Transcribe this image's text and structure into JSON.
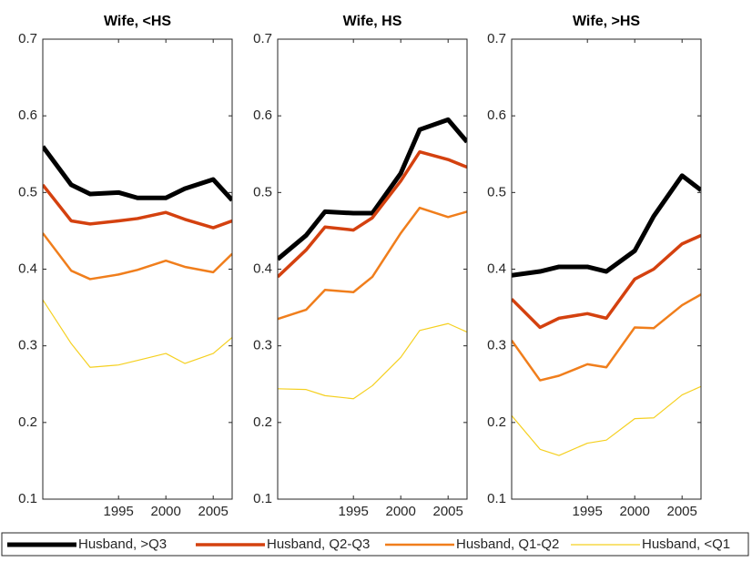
{
  "chart_data": [
    {
      "type": "line",
      "title": "Wife, <HS",
      "x": [
        1987,
        1990,
        1992,
        1995,
        1997,
        2000,
        2002,
        2005,
        2007
      ],
      "xlim": [
        1987,
        2007
      ],
      "xticks": [
        1995,
        2000,
        2005
      ],
      "ylim": [
        0.1,
        0.7
      ],
      "yticks": [
        0.1,
        0.2,
        0.3,
        0.4,
        0.5,
        0.6,
        0.7
      ],
      "series": [
        {
          "name": "Husband, >Q3",
          "color": "#000000",
          "values": [
            0.56,
            0.51,
            0.498,
            0.5,
            0.493,
            0.493,
            0.505,
            0.517,
            0.49
          ]
        },
        {
          "name": "Husband, Q2-Q3",
          "color": "#d4410f",
          "values": [
            0.51,
            0.463,
            0.459,
            0.463,
            0.466,
            0.474,
            0.465,
            0.454,
            0.463
          ]
        },
        {
          "name": "Husband, Q1-Q2",
          "color": "#f07e1c",
          "values": [
            0.447,
            0.398,
            0.387,
            0.393,
            0.399,
            0.411,
            0.403,
            0.396,
            0.42
          ]
        },
        {
          "name": "Husband, <Q1",
          "color": "#f5d020",
          "values": [
            0.36,
            0.303,
            0.272,
            0.275,
            0.281,
            0.29,
            0.277,
            0.29,
            0.311
          ]
        }
      ]
    },
    {
      "type": "line",
      "title": "Wife, HS",
      "x": [
        1987,
        1990,
        1992,
        1995,
        1997,
        2000,
        2002,
        2005,
        2007
      ],
      "xlim": [
        1987,
        2007
      ],
      "xticks": [
        1995,
        2000,
        2005
      ],
      "ylim": [
        0.1,
        0.7
      ],
      "yticks": [
        0.1,
        0.2,
        0.3,
        0.4,
        0.5,
        0.6,
        0.7
      ],
      "series": [
        {
          "name": "Husband, >Q3",
          "color": "#000000",
          "values": [
            0.413,
            0.444,
            0.475,
            0.473,
            0.473,
            0.525,
            0.582,
            0.595,
            0.566
          ]
        },
        {
          "name": "Husband, Q2-Q3",
          "color": "#d4410f",
          "values": [
            0.39,
            0.425,
            0.455,
            0.451,
            0.467,
            0.515,
            0.553,
            0.543,
            0.533
          ]
        },
        {
          "name": "Husband, Q1-Q2",
          "color": "#f07e1c",
          "values": [
            0.335,
            0.347,
            0.373,
            0.37,
            0.39,
            0.447,
            0.48,
            0.468,
            0.475
          ]
        },
        {
          "name": "Husband, <Q1",
          "color": "#f5d020",
          "values": [
            0.244,
            0.243,
            0.235,
            0.231,
            0.248,
            0.285,
            0.32,
            0.329,
            0.318
          ]
        }
      ]
    },
    {
      "type": "line",
      "title": "Wife, >HS",
      "x": [
        1987,
        1990,
        1992,
        1995,
        1997,
        2000,
        2002,
        2005,
        2007
      ],
      "xlim": [
        1987,
        2007
      ],
      "xticks": [
        1995,
        2000,
        2005
      ],
      "ylim": [
        0.1,
        0.7
      ],
      "yticks": [
        0.1,
        0.2,
        0.3,
        0.4,
        0.5,
        0.6,
        0.7
      ],
      "series": [
        {
          "name": "Husband, >Q3",
          "color": "#000000",
          "values": [
            0.392,
            0.397,
            0.403,
            0.403,
            0.397,
            0.424,
            0.469,
            0.522,
            0.503
          ]
        },
        {
          "name": "Husband, Q2-Q3",
          "color": "#d4410f",
          "values": [
            0.361,
            0.324,
            0.336,
            0.342,
            0.336,
            0.387,
            0.4,
            0.433,
            0.444
          ]
        },
        {
          "name": "Husband, Q1-Q2",
          "color": "#f07e1c",
          "values": [
            0.307,
            0.255,
            0.261,
            0.276,
            0.272,
            0.324,
            0.323,
            0.353,
            0.367
          ]
        },
        {
          "name": "Husband, <Q1",
          "color": "#f5d020",
          "values": [
            0.209,
            0.165,
            0.157,
            0.173,
            0.177,
            0.205,
            0.206,
            0.236,
            0.247
          ]
        }
      ]
    }
  ]
}
